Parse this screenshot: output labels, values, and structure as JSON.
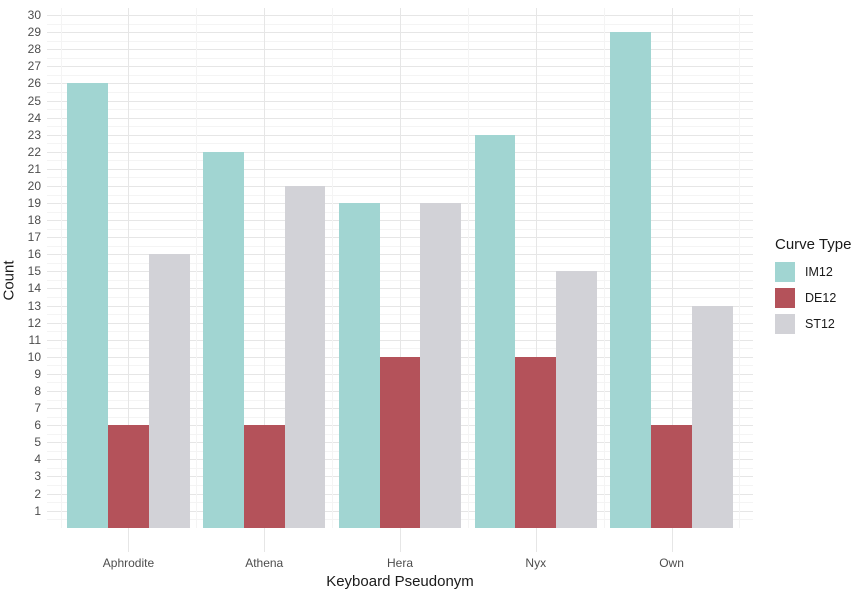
{
  "chart_data": {
    "type": "bar",
    "title": "",
    "xlabel": "Keyboard Pseudonym",
    "ylabel": "Count",
    "legend_title": "Curve Type",
    "legend_position": "right",
    "grid": "on",
    "background_color": "#ffffff",
    "categories": [
      "Aphrodite",
      "Athena",
      "Hera",
      "Nyx",
      "Own"
    ],
    "series": [
      {
        "name": "IM12",
        "color": "#a1d5d2",
        "values": [
          26,
          22,
          19,
          23,
          29
        ]
      },
      {
        "name": "DE12",
        "color": "#b4525a",
        "values": [
          6,
          6,
          10,
          10,
          6
        ]
      },
      {
        "name": "ST12",
        "color": "#d2d2d7",
        "values": [
          16,
          20,
          19,
          15,
          13
        ]
      }
    ],
    "y_axis": {
      "min": 0,
      "max": 30.45,
      "tick_from": 1,
      "tick_to": 30,
      "tick_step": 1,
      "minor_gridlines_at_halves": true
    }
  }
}
